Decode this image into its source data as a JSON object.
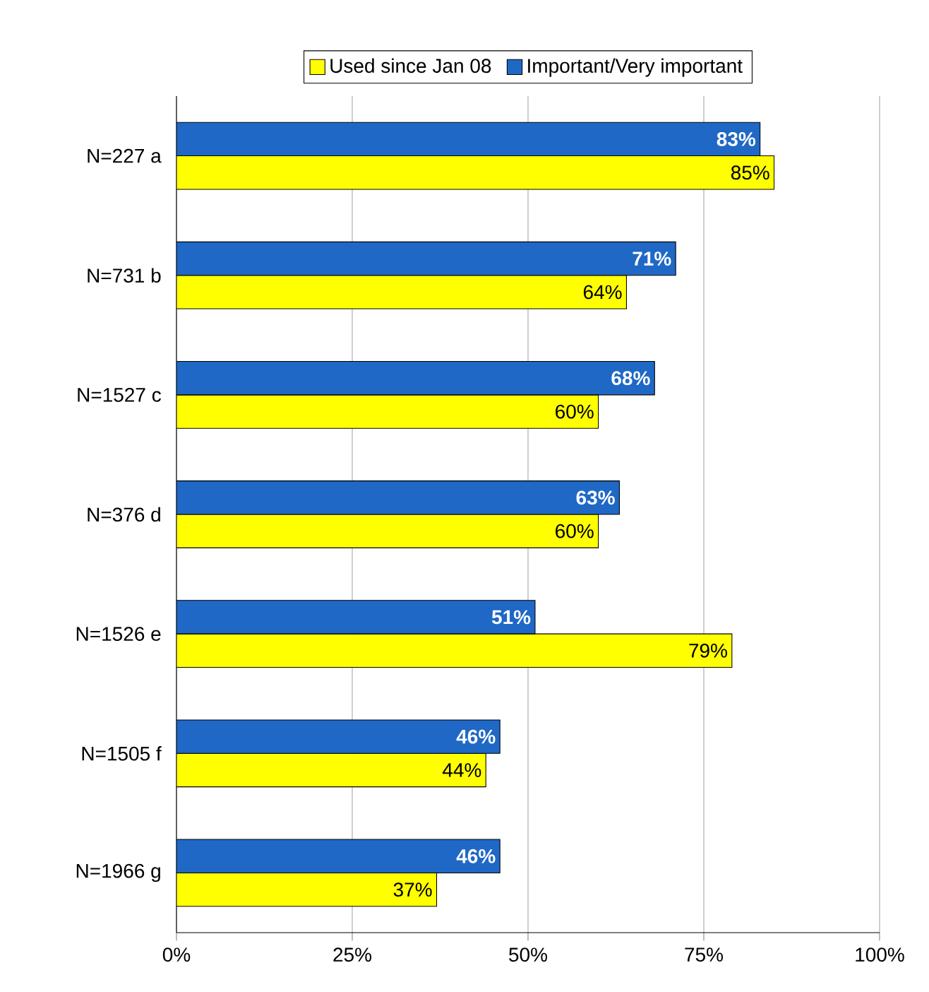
{
  "chart_data": {
    "type": "bar",
    "orientation": "horizontal",
    "categories": [
      "N=227  a",
      "N=731  b",
      "N=1527  c",
      "N=376  d",
      "N=1526  e",
      "N=1505  f",
      "N=1966  g"
    ],
    "series": [
      {
        "name": "Used since Jan 08",
        "color": "#ffff00",
        "values": [
          85,
          64,
          60,
          60,
          79,
          44,
          37
        ],
        "value_labels": [
          "85%",
          "64%",
          "60%",
          "60%",
          "79%",
          "44%",
          "37%"
        ]
      },
      {
        "name": "Important/Very important",
        "color": "#1f68c6",
        "values": [
          83,
          71,
          68,
          63,
          51,
          46,
          46
        ],
        "value_labels": [
          "83%",
          "71%",
          "68%",
          "63%",
          "51%",
          "46%",
          "46%"
        ]
      }
    ],
    "xlim": [
      0,
      100
    ],
    "xticks": [
      {
        "value": 0,
        "label": "0%"
      },
      {
        "value": 25,
        "label": "25%"
      },
      {
        "value": 50,
        "label": "50%"
      },
      {
        "value": 75,
        "label": "75%"
      },
      {
        "value": 100,
        "label": "100%"
      }
    ],
    "grid": "x",
    "legend": "top"
  }
}
